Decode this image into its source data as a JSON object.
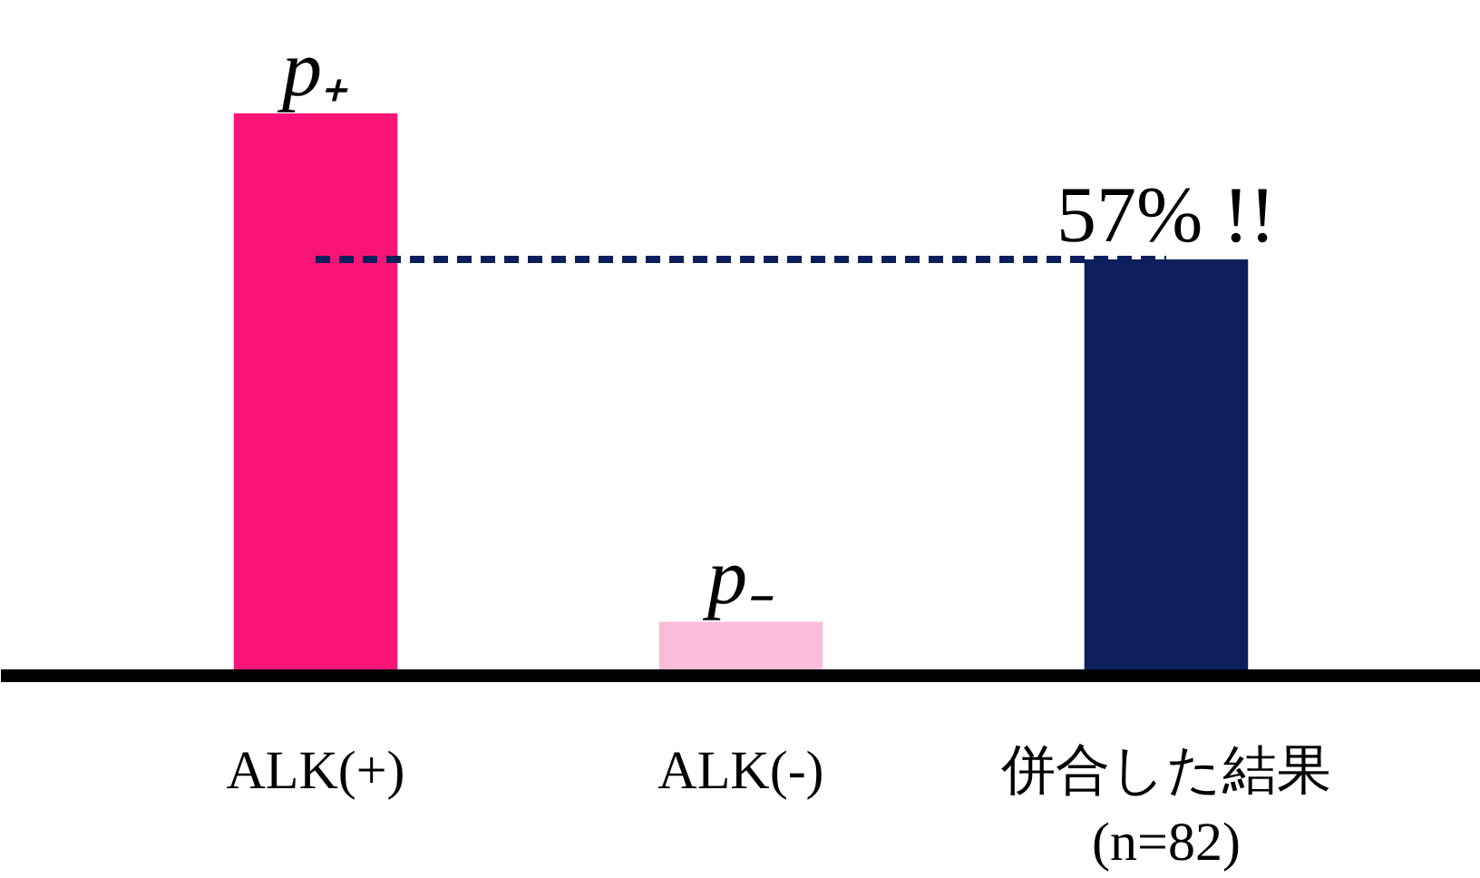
{
  "chart_data": {
    "type": "bar",
    "categories": [
      "ALK(+)",
      "ALK(-)",
      "併合した結果\n(n=82)"
    ],
    "values": [
      77,
      7.4,
      57
    ],
    "colors": [
      "#fa1478",
      "#fbbcd9",
      "#0c1f5c"
    ],
    "value_labels": [
      "p₊",
      "p₋",
      "57% !!"
    ],
    "ref_lines": [
      {
        "axis": "y",
        "value": 57,
        "color": "#0c1f5c",
        "line_style": "dashed"
      }
    ],
    "grid": false
  }
}
